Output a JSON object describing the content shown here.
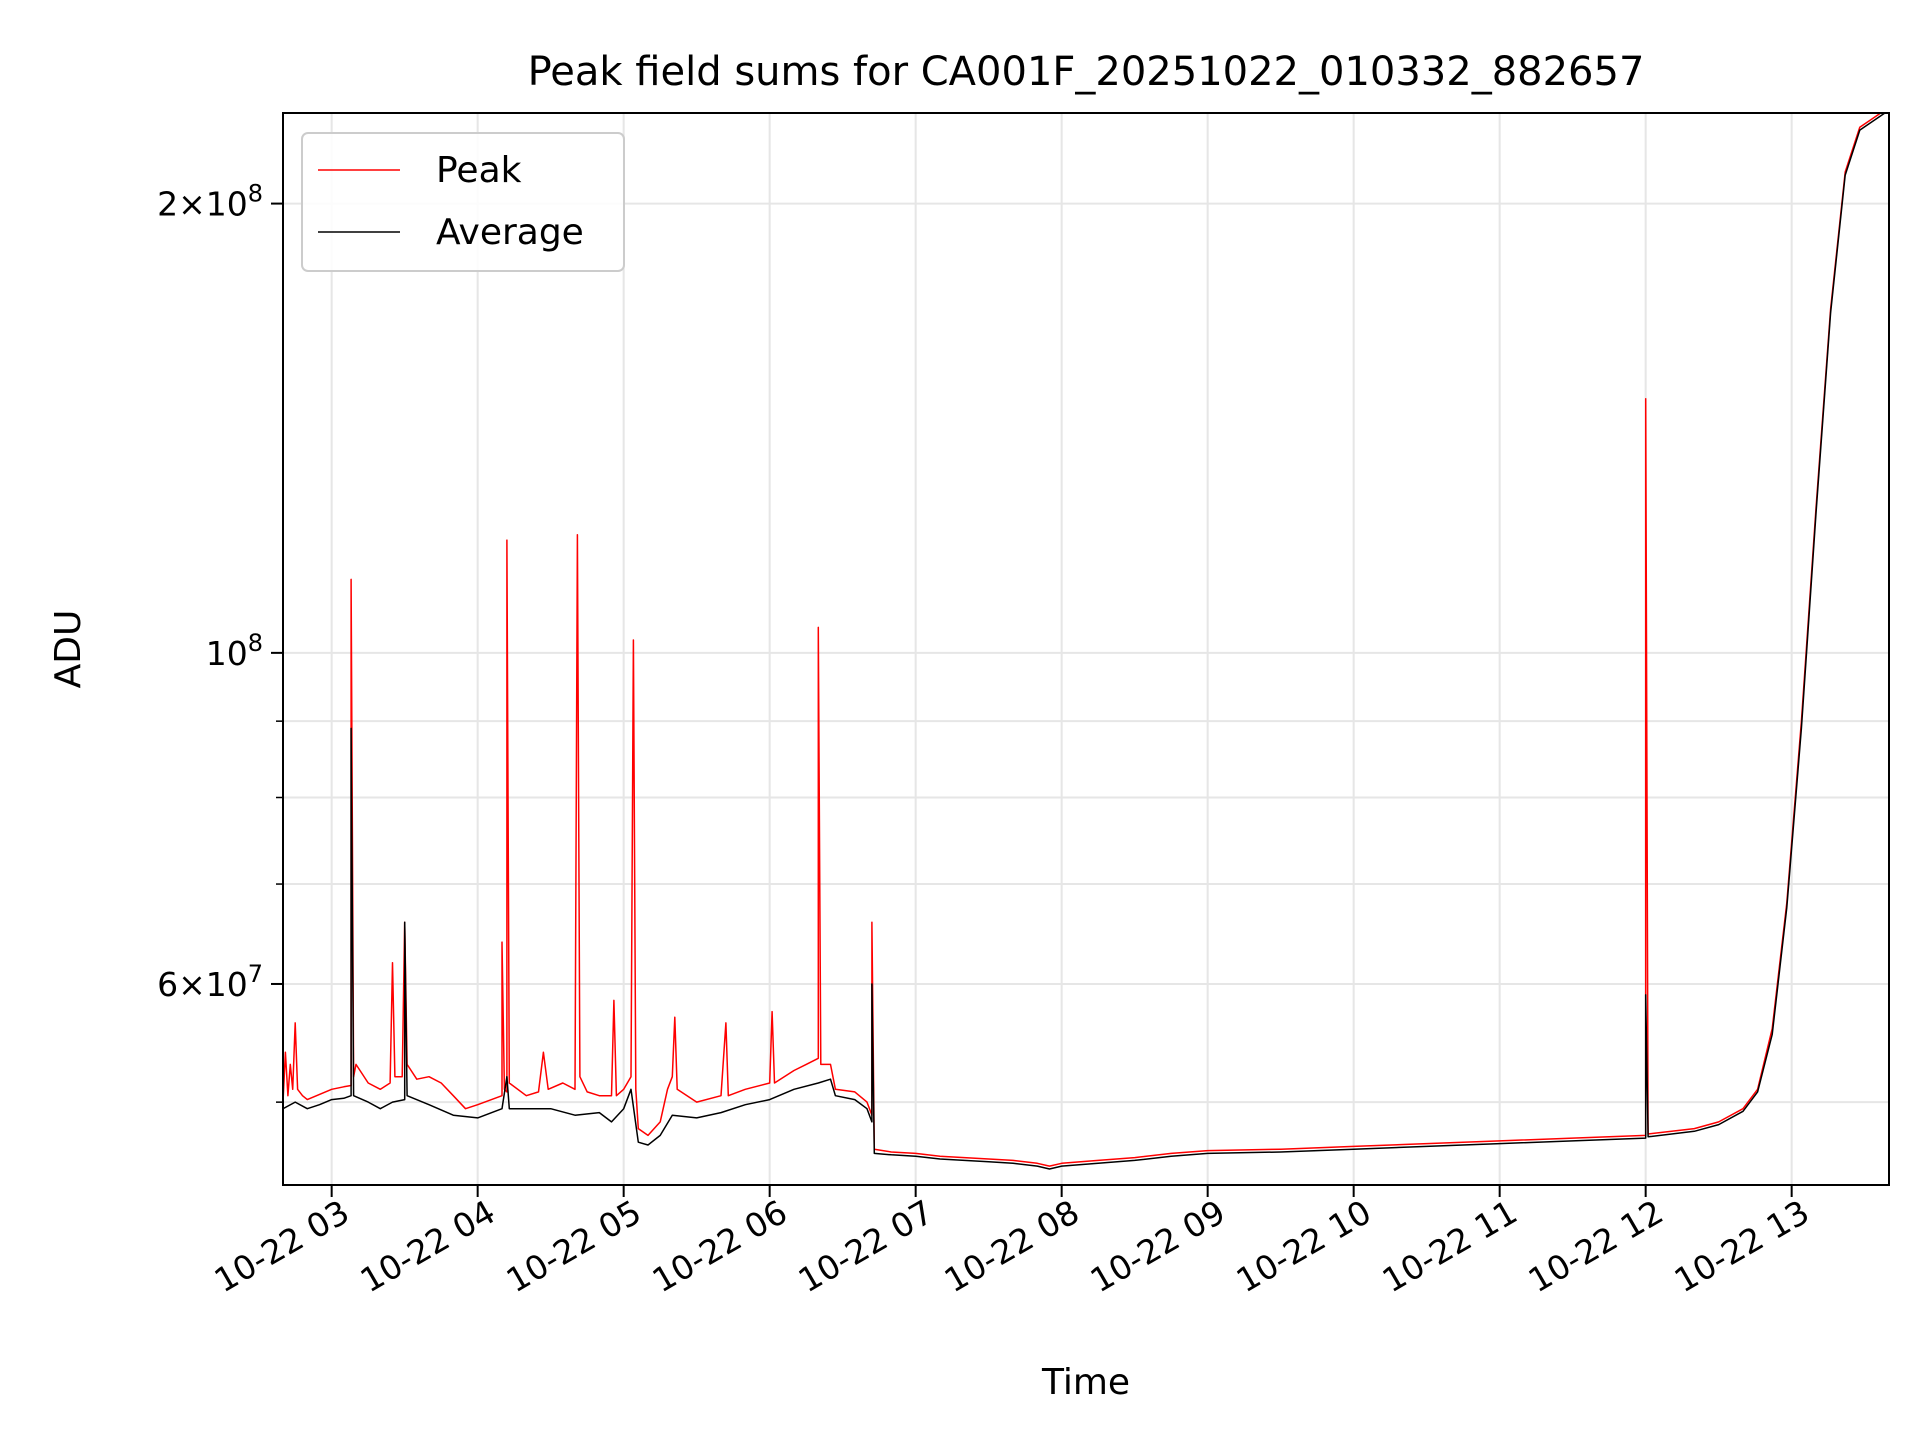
{
  "chart_data": {
    "type": "line",
    "title": "Peak field sums for CA001F_20251022_010332_882657",
    "xlabel": "Time",
    "ylabel": "ADU",
    "x_axis": "time",
    "xlim": [
      "2025-10-22 02:40",
      "2025-10-22 13:40"
    ],
    "ylim": [
      44000000,
      230000000
    ],
    "y_scale": "log",
    "grid": true,
    "legend_position": "upper-left",
    "x_ticks": [
      "10-22 03",
      "10-22 04",
      "10-22 05",
      "10-22 06",
      "10-22 07",
      "10-22 08",
      "10-22 09",
      "10-22 10",
      "10-22 11",
      "10-22 12",
      "10-22 13"
    ],
    "y_ticks_major": [
      {
        "value": 60000000,
        "mantissa": "6",
        "exp": "7"
      },
      {
        "value": 100000000,
        "mantissa": "",
        "exp": "8"
      },
      {
        "value": 200000000,
        "mantissa": "2",
        "exp": "8"
      }
    ],
    "y_ticks_minor": [
      50000000,
      70000000,
      80000000,
      90000000
    ],
    "series": [
      {
        "name": "Peak",
        "color": "#ff0000",
        "points": [
          [
            "2025-10-22 02:40",
            50000000
          ],
          [
            "2025-10-22 02:41",
            54000000
          ],
          [
            "2025-10-22 02:42",
            50500000
          ],
          [
            "2025-10-22 02:43",
            53000000
          ],
          [
            "2025-10-22 02:44",
            51000000
          ],
          [
            "2025-10-22 02:45",
            56500000
          ],
          [
            "2025-10-22 02:46",
            51000000
          ],
          [
            "2025-10-22 02:48",
            50500000
          ],
          [
            "2025-10-22 02:50",
            50200000
          ],
          [
            "2025-10-22 02:55",
            50600000
          ],
          [
            "2025-10-22 03:00",
            51000000
          ],
          [
            "2025-10-22 03:05",
            51200000
          ],
          [
            "2025-10-22 03:08",
            51300000
          ],
          [
            "2025-10-22 03:08",
            112000000
          ],
          [
            "2025-10-22 03:09",
            52000000
          ],
          [
            "2025-10-22 03:10",
            53000000
          ],
          [
            "2025-10-22 03:15",
            51500000
          ],
          [
            "2025-10-22 03:20",
            51000000
          ],
          [
            "2025-10-22 03:24",
            51500000
          ],
          [
            "2025-10-22 03:25",
            62000000
          ],
          [
            "2025-10-22 03:26",
            52000000
          ],
          [
            "2025-10-22 03:29",
            52000000
          ],
          [
            "2025-10-22 03:30",
            66000000
          ],
          [
            "2025-10-22 03:31",
            53000000
          ],
          [
            "2025-10-22 03:35",
            51800000
          ],
          [
            "2025-10-22 03:40",
            52000000
          ],
          [
            "2025-10-22 03:45",
            51500000
          ],
          [
            "2025-10-22 03:50",
            50500000
          ],
          [
            "2025-10-22 03:55",
            49500000
          ],
          [
            "2025-10-22 04:00",
            49800000
          ],
          [
            "2025-10-22 04:10",
            50500000
          ],
          [
            "2025-10-22 04:10",
            64000000
          ],
          [
            "2025-10-22 04:11",
            51000000
          ],
          [
            "2025-10-22 04:12",
            50800000
          ],
          [
            "2025-10-22 04:12",
            119000000
          ],
          [
            "2025-10-22 04:13",
            51500000
          ],
          [
            "2025-10-22 04:20",
            50500000
          ],
          [
            "2025-10-22 04:25",
            50800000
          ],
          [
            "2025-10-22 04:27",
            54000000
          ],
          [
            "2025-10-22 04:29",
            51000000
          ],
          [
            "2025-10-22 04:35",
            51500000
          ],
          [
            "2025-10-22 04:40",
            51000000
          ],
          [
            "2025-10-22 04:41",
            120000000
          ],
          [
            "2025-10-22 04:42",
            52000000
          ],
          [
            "2025-10-22 04:45",
            50800000
          ],
          [
            "2025-10-22 04:50",
            50500000
          ],
          [
            "2025-10-22 04:55",
            50500000
          ],
          [
            "2025-10-22 04:56",
            58500000
          ],
          [
            "2025-10-22 04:57",
            50500000
          ],
          [
            "2025-10-22 05:00",
            51000000
          ],
          [
            "2025-10-22 05:03",
            52000000
          ],
          [
            "2025-10-22 05:04",
            102000000
          ],
          [
            "2025-10-22 05:05",
            51000000
          ],
          [
            "2025-10-22 05:06",
            48000000
          ],
          [
            "2025-10-22 05:10",
            47500000
          ],
          [
            "2025-10-22 05:15",
            48500000
          ],
          [
            "2025-10-22 05:18",
            51000000
          ],
          [
            "2025-10-22 05:20",
            52000000
          ],
          [
            "2025-10-22 05:21",
            57000000
          ],
          [
            "2025-10-22 05:22",
            51000000
          ],
          [
            "2025-10-22 05:30",
            50000000
          ],
          [
            "2025-10-22 05:40",
            50500000
          ],
          [
            "2025-10-22 05:42",
            56500000
          ],
          [
            "2025-10-22 05:43",
            50500000
          ],
          [
            "2025-10-22 05:50",
            51000000
          ],
          [
            "2025-10-22 06:00",
            51500000
          ],
          [
            "2025-10-22 06:01",
            57500000
          ],
          [
            "2025-10-22 06:02",
            51500000
          ],
          [
            "2025-10-22 06:10",
            52500000
          ],
          [
            "2025-10-22 06:15",
            53000000
          ],
          [
            "2025-10-22 06:20",
            53500000
          ],
          [
            "2025-10-22 06:20",
            104000000
          ],
          [
            "2025-10-22 06:21",
            53000000
          ],
          [
            "2025-10-22 06:25",
            53000000
          ],
          [
            "2025-10-22 06:27",
            51000000
          ],
          [
            "2025-10-22 06:35",
            50800000
          ],
          [
            "2025-10-22 06:40",
            50000000
          ],
          [
            "2025-10-22 06:42",
            49000000
          ],
          [
            "2025-10-22 06:42",
            66000000
          ],
          [
            "2025-10-22 06:43",
            46500000
          ],
          [
            "2025-10-22 06:50",
            46300000
          ],
          [
            "2025-10-22 07:00",
            46200000
          ],
          [
            "2025-10-22 07:10",
            46000000
          ],
          [
            "2025-10-22 07:20",
            45900000
          ],
          [
            "2025-10-22 07:30",
            45800000
          ],
          [
            "2025-10-22 07:40",
            45700000
          ],
          [
            "2025-10-22 07:50",
            45500000
          ],
          [
            "2025-10-22 07:55",
            45300000
          ],
          [
            "2025-10-22 08:00",
            45500000
          ],
          [
            "2025-10-22 08:15",
            45700000
          ],
          [
            "2025-10-22 08:30",
            45900000
          ],
          [
            "2025-10-22 08:45",
            46200000
          ],
          [
            "2025-10-22 09:00",
            46400000
          ],
          [
            "2025-10-22 09:30",
            46500000
          ],
          [
            "2025-10-22 10:00",
            46700000
          ],
          [
            "2025-10-22 10:30",
            46900000
          ],
          [
            "2025-10-22 11:00",
            47100000
          ],
          [
            "2025-10-22 11:30",
            47300000
          ],
          [
            "2025-10-22 12:00",
            47500000
          ],
          [
            "2025-10-22 12:00",
            148000000
          ],
          [
            "2025-10-22 12:01",
            47600000
          ],
          [
            "2025-10-22 12:20",
            48000000
          ],
          [
            "2025-10-22 12:30",
            48500000
          ],
          [
            "2025-10-22 12:40",
            49500000
          ],
          [
            "2025-10-22 12:46",
            51000000
          ],
          [
            "2025-10-22 12:52",
            56000000
          ],
          [
            "2025-10-22 12:58",
            68000000
          ],
          [
            "2025-10-22 13:04",
            90000000
          ],
          [
            "2025-10-22 13:10",
            125000000
          ],
          [
            "2025-10-22 13:16",
            170000000
          ],
          [
            "2025-10-22 13:22",
            210000000
          ],
          [
            "2025-10-22 13:28",
            225000000
          ],
          [
            "2025-10-22 13:40",
            232000000
          ]
        ]
      },
      {
        "name": "Average",
        "color": "#000000",
        "points": [
          [
            "2025-10-22 02:40",
            49500000
          ],
          [
            "2025-10-22 02:45",
            50000000
          ],
          [
            "2025-10-22 02:50",
            49500000
          ],
          [
            "2025-10-22 02:55",
            49800000
          ],
          [
            "2025-10-22 03:00",
            50200000
          ],
          [
            "2025-10-22 03:05",
            50300000
          ],
          [
            "2025-10-22 03:08",
            50500000
          ],
          [
            "2025-10-22 03:08",
            89000000
          ],
          [
            "2025-10-22 03:09",
            50500000
          ],
          [
            "2025-10-22 03:15",
            50000000
          ],
          [
            "2025-10-22 03:20",
            49500000
          ],
          [
            "2025-10-22 03:25",
            50000000
          ],
          [
            "2025-10-22 03:30",
            50200000
          ],
          [
            "2025-10-22 03:30",
            66000000
          ],
          [
            "2025-10-22 03:31",
            50500000
          ],
          [
            "2025-10-22 03:40",
            49800000
          ],
          [
            "2025-10-22 03:50",
            49000000
          ],
          [
            "2025-10-22 04:00",
            48800000
          ],
          [
            "2025-10-22 04:10",
            49500000
          ],
          [
            "2025-10-22 04:12",
            52000000
          ],
          [
            "2025-10-22 04:13",
            49500000
          ],
          [
            "2025-10-22 04:30",
            49500000
          ],
          [
            "2025-10-22 04:40",
            49000000
          ],
          [
            "2025-10-22 04:50",
            49200000
          ],
          [
            "2025-10-22 04:55",
            48500000
          ],
          [
            "2025-10-22 05:00",
            49500000
          ],
          [
            "2025-10-22 05:03",
            51000000
          ],
          [
            "2025-10-22 05:06",
            47000000
          ],
          [
            "2025-10-22 05:10",
            46800000
          ],
          [
            "2025-10-22 05:15",
            47500000
          ],
          [
            "2025-10-22 05:20",
            49000000
          ],
          [
            "2025-10-22 05:30",
            48800000
          ],
          [
            "2025-10-22 05:40",
            49200000
          ],
          [
            "2025-10-22 05:50",
            49800000
          ],
          [
            "2025-10-22 06:00",
            50200000
          ],
          [
            "2025-10-22 06:10",
            51000000
          ],
          [
            "2025-10-22 06:20",
            51500000
          ],
          [
            "2025-10-22 06:25",
            51800000
          ],
          [
            "2025-10-22 06:27",
            50500000
          ],
          [
            "2025-10-22 06:35",
            50200000
          ],
          [
            "2025-10-22 06:40",
            49500000
          ],
          [
            "2025-10-22 06:42",
            48500000
          ],
          [
            "2025-10-22 06:42",
            60000000
          ],
          [
            "2025-10-22 06:43",
            46200000
          ],
          [
            "2025-10-22 06:50",
            46100000
          ],
          [
            "2025-10-22 07:00",
            46000000
          ],
          [
            "2025-10-22 07:10",
            45800000
          ],
          [
            "2025-10-22 07:20",
            45700000
          ],
          [
            "2025-10-22 07:30",
            45600000
          ],
          [
            "2025-10-22 07:40",
            45500000
          ],
          [
            "2025-10-22 07:50",
            45300000
          ],
          [
            "2025-10-22 07:55",
            45100000
          ],
          [
            "2025-10-22 08:00",
            45300000
          ],
          [
            "2025-10-22 08:15",
            45500000
          ],
          [
            "2025-10-22 08:30",
            45700000
          ],
          [
            "2025-10-22 08:45",
            46000000
          ],
          [
            "2025-10-22 09:00",
            46200000
          ],
          [
            "2025-10-22 09:30",
            46300000
          ],
          [
            "2025-10-22 10:00",
            46500000
          ],
          [
            "2025-10-22 10:30",
            46700000
          ],
          [
            "2025-10-22 11:00",
            46900000
          ],
          [
            "2025-10-22 11:30",
            47100000
          ],
          [
            "2025-10-22 12:00",
            47300000
          ],
          [
            "2025-10-22 12:00",
            59000000
          ],
          [
            "2025-10-22 12:01",
            47400000
          ],
          [
            "2025-10-22 12:20",
            47800000
          ],
          [
            "2025-10-22 12:30",
            48300000
          ],
          [
            "2025-10-22 12:40",
            49300000
          ],
          [
            "2025-10-22 12:46",
            50800000
          ],
          [
            "2025-10-22 12:52",
            55500000
          ],
          [
            "2025-10-22 12:58",
            67500000
          ],
          [
            "2025-10-22 13:04",
            89000000
          ],
          [
            "2025-10-22 13:10",
            124000000
          ],
          [
            "2025-10-22 13:16",
            169000000
          ],
          [
            "2025-10-22 13:22",
            209000000
          ],
          [
            "2025-10-22 13:28",
            224000000
          ],
          [
            "2025-10-22 13:40",
            231000000
          ]
        ]
      }
    ]
  }
}
